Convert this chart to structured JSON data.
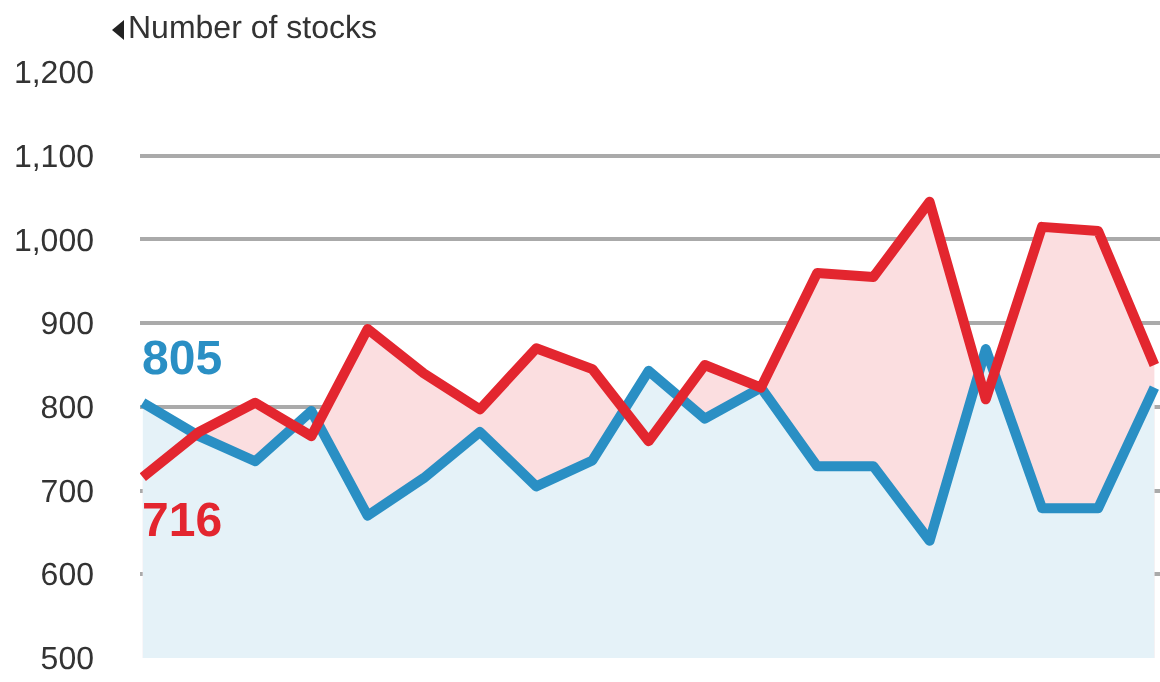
{
  "chart_data": {
    "type": "area",
    "ylabel": "Number of stocks",
    "categories": [
      null,
      null,
      null,
      null,
      null,
      null,
      null,
      null,
      null,
      null,
      null,
      null,
      null,
      null,
      null,
      null,
      null,
      null,
      null
    ],
    "series": [
      {
        "color": "#2a8fc4",
        "values": [
          805,
          765,
          735,
          795,
          670,
          715,
          770,
          705,
          736,
          843,
          786,
          823,
          729,
          729,
          640,
          869,
          679,
          679,
          823
        ],
        "value_labels": [
          "805",
          null,
          null,
          null,
          null,
          null,
          null,
          null,
          null,
          null,
          null,
          null,
          null,
          null,
          null,
          null,
          null,
          null,
          null
        ]
      },
      {
        "color": "#e3262f",
        "values": [
          716,
          770,
          805,
          765,
          893,
          840,
          797,
          870,
          845,
          759,
          850,
          823,
          960,
          955,
          1045,
          809,
          1015,
          1010,
          850
        ],
        "value_labels": [
          "716",
          null,
          null,
          null,
          null,
          null,
          null,
          null,
          null,
          null,
          null,
          null,
          null,
          null,
          null,
          null,
          null,
          null,
          null
        ]
      }
    ],
    "ylim": [
      500,
      1200
    ],
    "yticks": [
      500,
      600,
      700,
      800,
      900,
      {
        "value": 1000,
        "label": "1,000"
      },
      {
        "value": 1100,
        "label": "1,100"
      },
      {
        "value": 1200,
        "label": "1,200"
      }
    ],
    "grid": "y",
    "marker": "none",
    "line_style": "solid",
    "tick_labels": "y"
  }
}
